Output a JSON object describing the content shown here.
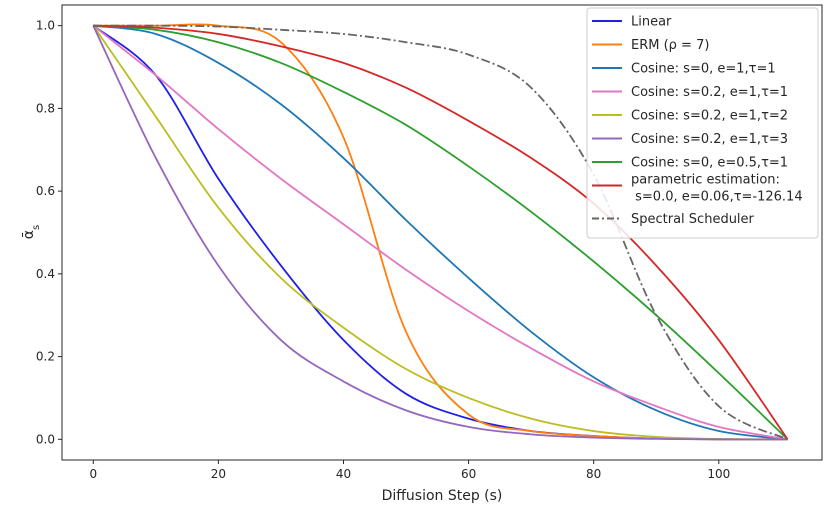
{
  "chart_data": {
    "type": "line",
    "xlabel": "Diffusion Step (s)",
    "ylabel": "ᾱ",
    "ylabel_subscript": "s",
    "xlim": [
      -5,
      116.5
    ],
    "ylim": [
      -0.05,
      1.05
    ],
    "xticks": [
      0,
      20,
      40,
      60,
      80,
      100
    ],
    "yticks": [
      0.0,
      0.2,
      0.4,
      0.6,
      0.8,
      1.0
    ],
    "xtick_labels": [
      "0",
      "20",
      "40",
      "60",
      "80",
      "100"
    ],
    "ytick_labels": [
      "0.0",
      "0.2",
      "0.4",
      "0.6",
      "0.8",
      "1.0"
    ],
    "grid": false,
    "legend_position": "top-right",
    "x": [
      0,
      10,
      20,
      30,
      40,
      50,
      60,
      70,
      80,
      90,
      100,
      111
    ],
    "series": [
      {
        "name": "Linear",
        "color": "#1f1fe8",
        "style": "solid",
        "values": [
          1.0,
          0.88,
          0.63,
          0.42,
          0.24,
          0.11,
          0.05,
          0.02,
          0.008,
          0.002,
          0.0,
          0.0
        ]
      },
      {
        "name": "ERM (ρ = 7)",
        "color": "#ff7f0e",
        "style": "solid",
        "values": [
          1.0,
          1.0,
          1.0,
          0.96,
          0.73,
          0.26,
          0.06,
          0.02,
          0.008,
          0.002,
          0.0,
          0.0
        ]
      },
      {
        "name": "Cosine: s=0, e=1,τ=1",
        "color": "#1f77b4",
        "style": "solid",
        "values": [
          1.0,
          0.98,
          0.91,
          0.81,
          0.68,
          0.53,
          0.39,
          0.26,
          0.15,
          0.07,
          0.02,
          0.0
        ]
      },
      {
        "name": "Cosine: s=0.2, e=1,τ=1",
        "color": "#e377c2",
        "style": "solid",
        "values": [
          1.0,
          0.88,
          0.75,
          0.63,
          0.52,
          0.41,
          0.31,
          0.22,
          0.14,
          0.08,
          0.03,
          0.0
        ]
      },
      {
        "name": "Cosine: s=0.2, e=1,τ=2",
        "color": "#bcbd22",
        "style": "solid",
        "values": [
          1.0,
          0.78,
          0.56,
          0.39,
          0.27,
          0.17,
          0.1,
          0.05,
          0.02,
          0.006,
          0.001,
          0.0
        ]
      },
      {
        "name": "Cosine: s=0.2, e=1,τ=3",
        "color": "#9467bd",
        "style": "solid",
        "values": [
          1.0,
          0.68,
          0.42,
          0.24,
          0.14,
          0.07,
          0.03,
          0.012,
          0.004,
          0.001,
          0.0,
          0.0
        ]
      },
      {
        "name": "Cosine: s=0, e=0.5,τ=1",
        "color": "#2ca02c",
        "style": "solid",
        "values": [
          1.0,
          0.99,
          0.96,
          0.91,
          0.84,
          0.76,
          0.66,
          0.55,
          0.43,
          0.3,
          0.16,
          0.0
        ]
      },
      {
        "name": "parametric estimation:",
        "name_line2": " s=0.0, e=0.06,τ=-126.14",
        "color": "#d62728",
        "style": "solid",
        "values": [
          1.0,
          0.995,
          0.98,
          0.95,
          0.91,
          0.85,
          0.77,
          0.68,
          0.57,
          0.42,
          0.24,
          0.0
        ]
      },
      {
        "name": "Spectral Scheduler",
        "color": "#666666",
        "style": "dashdot",
        "values": [
          1.0,
          1.0,
          0.998,
          0.99,
          0.98,
          0.96,
          0.93,
          0.85,
          0.64,
          0.3,
          0.08,
          0.0
        ]
      }
    ]
  }
}
